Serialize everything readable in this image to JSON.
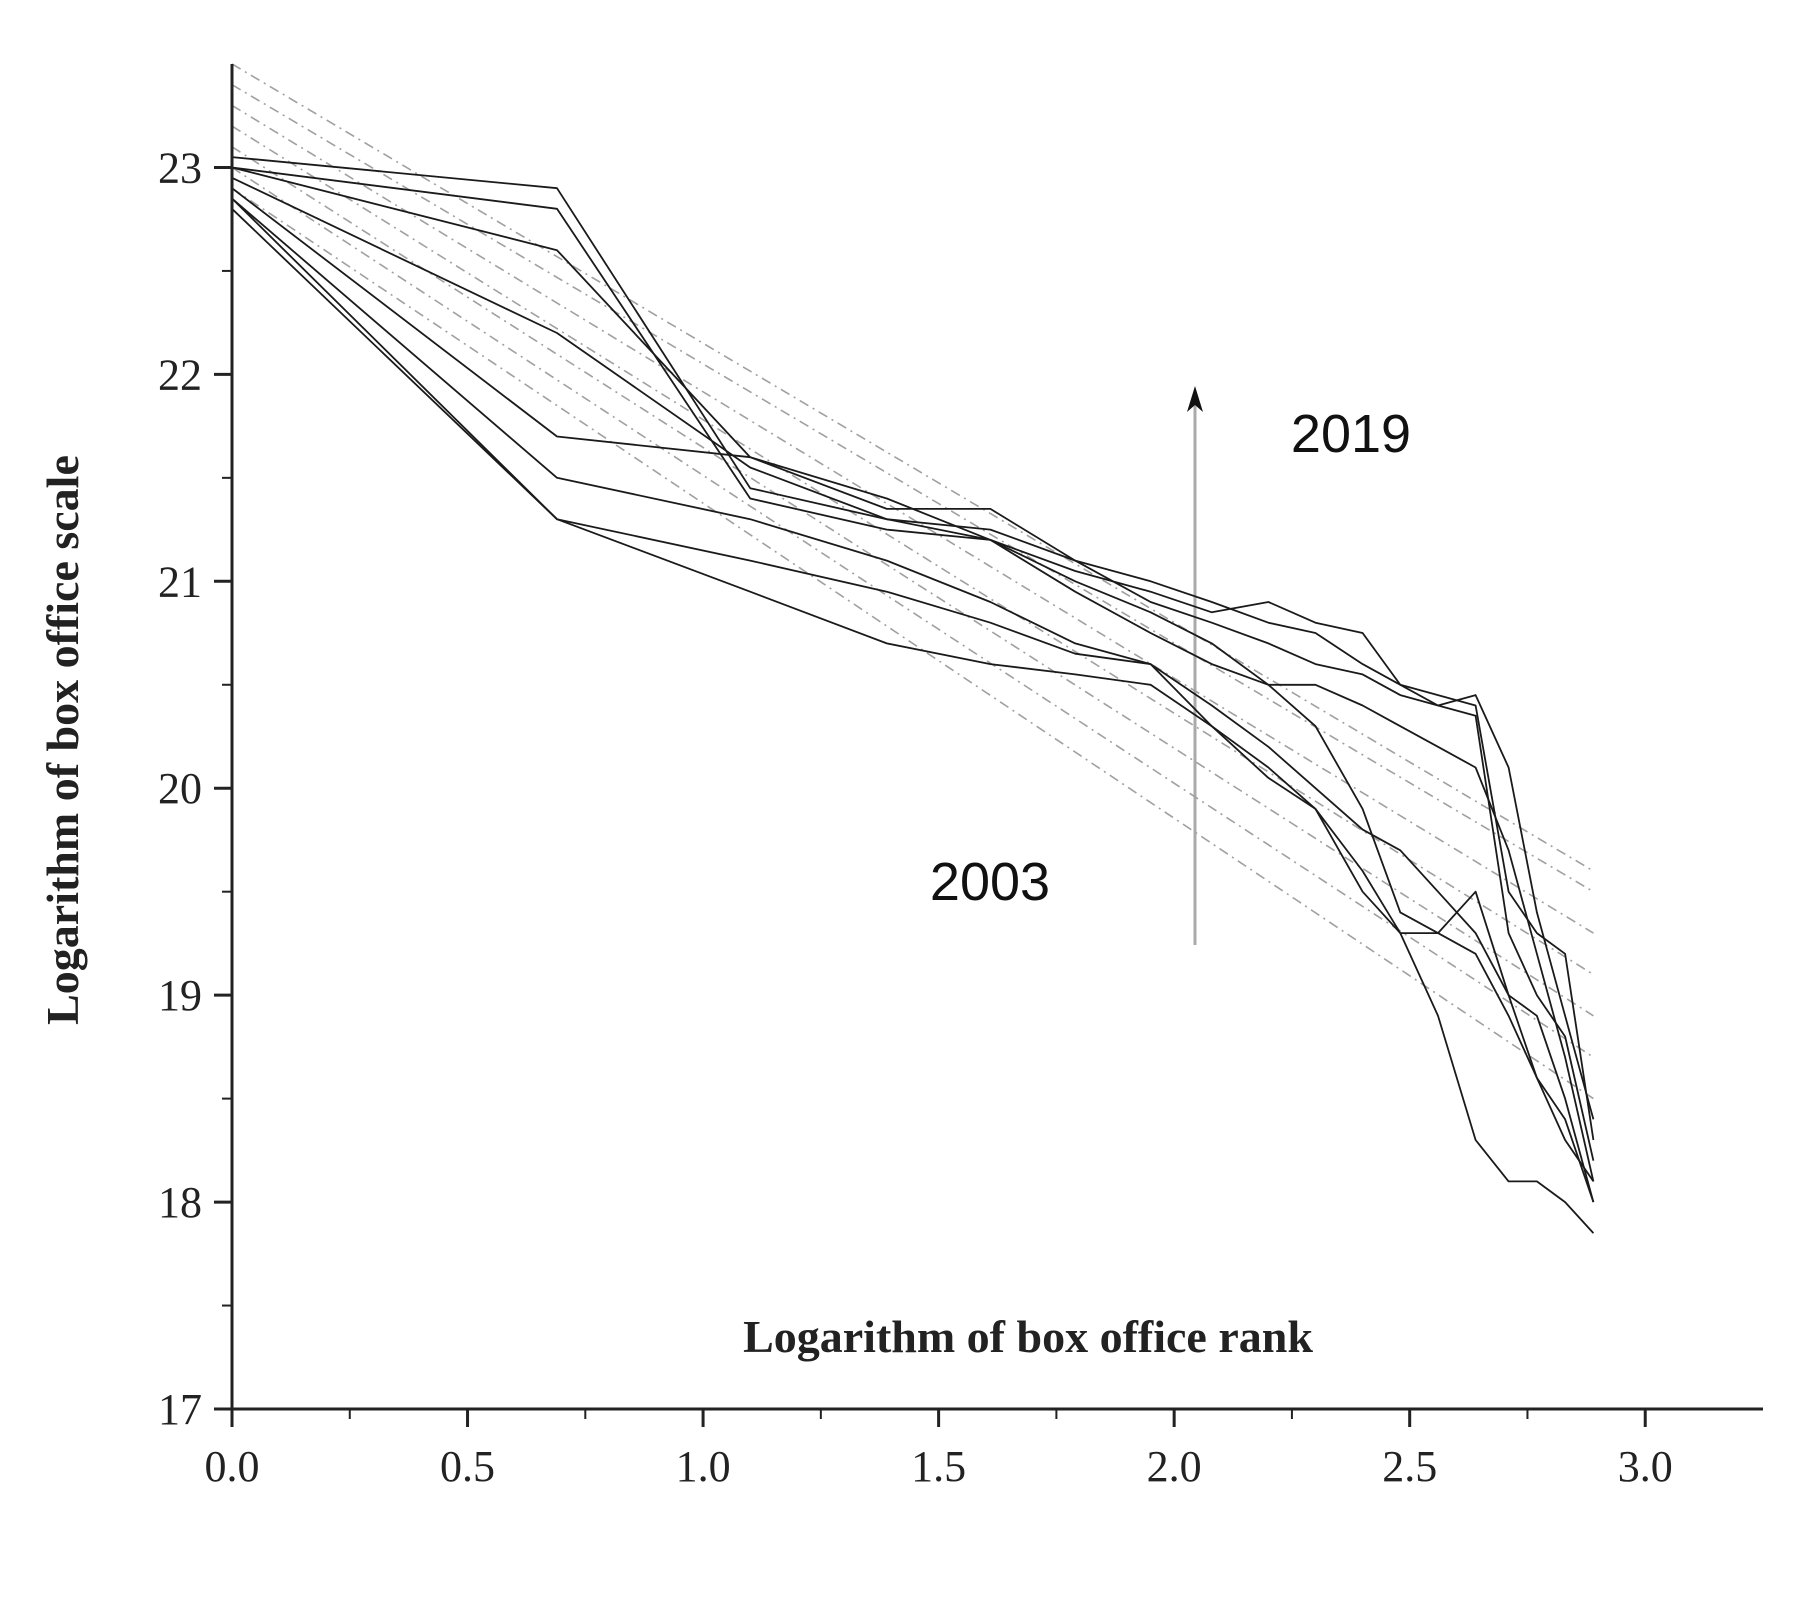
{
  "chart_data": {
    "type": "line",
    "xlabel": "Logarithm of box office rank",
    "ylabel": "Logarithm of box office scale",
    "annotations": [
      "2019",
      "2003"
    ],
    "x": [
      0,
      0.69,
      1.1,
      1.39,
      1.61,
      1.79,
      1.95,
      2.08,
      2.2,
      2.3,
      2.4,
      2.48,
      2.56,
      2.64,
      2.71,
      2.77,
      2.83,
      2.89
    ],
    "xlim": [
      0,
      3.25
    ],
    "xticks": [
      {
        "value": 0,
        "label": "0.0"
      },
      0.5,
      {
        "value": 1,
        "label": "1.0"
      },
      1.5,
      {
        "value": 2,
        "label": "2.0"
      },
      2.5,
      {
        "value": 3,
        "label": "3.0"
      }
    ],
    "ylim": [
      17,
      23.5
    ],
    "yticks": [
      17,
      18,
      19,
      20,
      21,
      22,
      23
    ],
    "grid": false,
    "series": [
      {
        "color": "#1a1a1a",
        "style": "solid",
        "values": [
          23.05,
          22.9,
          21.45,
          21.3,
          21.25,
          21.1,
          21.0,
          20.9,
          20.8,
          20.75,
          20.6,
          20.5,
          20.45,
          20.4,
          19.5,
          19.3,
          19.2,
          18.3
        ]
      },
      {
        "color": "#1a1a1a",
        "style": "solid",
        "values": [
          23.0,
          22.8,
          21.4,
          21.25,
          21.2,
          21.05,
          20.95,
          20.85,
          20.9,
          20.8,
          20.75,
          20.5,
          20.4,
          20.35,
          19.3,
          19.0,
          18.8,
          18.2
        ]
      },
      {
        "color": "#1a1a1a",
        "style": "solid",
        "values": [
          23.0,
          22.6,
          21.6,
          21.35,
          21.35,
          21.1,
          20.9,
          20.8,
          20.7,
          20.6,
          20.55,
          20.45,
          20.4,
          20.45,
          20.1,
          19.4,
          18.9,
          18.4
        ]
      },
      {
        "color": "#1a1a1a",
        "style": "solid",
        "values": [
          22.95,
          22.2,
          21.55,
          21.3,
          21.2,
          21.0,
          20.85,
          20.7,
          20.5,
          20.5,
          20.4,
          20.3,
          20.2,
          20.1,
          19.7,
          19.2,
          18.7,
          18.1
        ]
      },
      {
        "color": "#1a1a1a",
        "style": "solid",
        "values": [
          22.9,
          21.7,
          21.6,
          21.4,
          21.2,
          20.95,
          20.75,
          20.6,
          20.5,
          20.3,
          19.9,
          19.4,
          19.3,
          19.5,
          19.0,
          18.9,
          18.5,
          18.0
        ]
      },
      {
        "color": "#1a1a1a",
        "style": "solid",
        "values": [
          22.85,
          21.5,
          21.3,
          21.1,
          20.9,
          20.7,
          20.6,
          20.3,
          20.1,
          19.9,
          19.5,
          19.3,
          19.3,
          19.2,
          18.9,
          18.6,
          18.3,
          18.1
        ]
      },
      {
        "color": "#1a1a1a",
        "style": "solid",
        "values": [
          22.85,
          21.3,
          21.1,
          20.95,
          20.8,
          20.65,
          20.6,
          20.4,
          20.2,
          20.0,
          19.8,
          19.7,
          19.5,
          19.3,
          19.0,
          18.6,
          18.4,
          18.0
        ]
      },
      {
        "color": "#1a1a1a",
        "style": "solid",
        "values": [
          22.8,
          21.3,
          20.95,
          20.7,
          20.6,
          20.55,
          20.5,
          20.3,
          20.05,
          19.9,
          19.6,
          19.3,
          18.9,
          18.3,
          18.1,
          18.1,
          18.0,
          17.85
        ]
      },
      {
        "color": "#a0a0a0",
        "style": "dash-dot",
        "x": [
          0,
          2.89
        ],
        "values": [
          23.5,
          19.6
        ]
      },
      {
        "color": "#a0a0a0",
        "style": "dash-dot",
        "x": [
          0,
          2.89
        ],
        "values": [
          23.4,
          19.5
        ]
      },
      {
        "color": "#a0a0a0",
        "style": "dash-dot",
        "x": [
          0,
          2.89
        ],
        "values": [
          23.3,
          19.3
        ]
      },
      {
        "color": "#a0a0a0",
        "style": "dash-dot",
        "x": [
          0,
          2.89
        ],
        "values": [
          23.2,
          19.1
        ]
      },
      {
        "color": "#a0a0a0",
        "style": "dash-dot",
        "x": [
          0,
          2.89
        ],
        "values": [
          23.1,
          18.9
        ]
      },
      {
        "color": "#a0a0a0",
        "style": "dash-dot",
        "x": [
          0,
          2.89
        ],
        "values": [
          23.0,
          18.7
        ]
      },
      {
        "color": "#a0a0a0",
        "style": "dash-dot",
        "x": [
          0,
          2.89
        ],
        "values": [
          22.9,
          18.5
        ]
      }
    ]
  }
}
